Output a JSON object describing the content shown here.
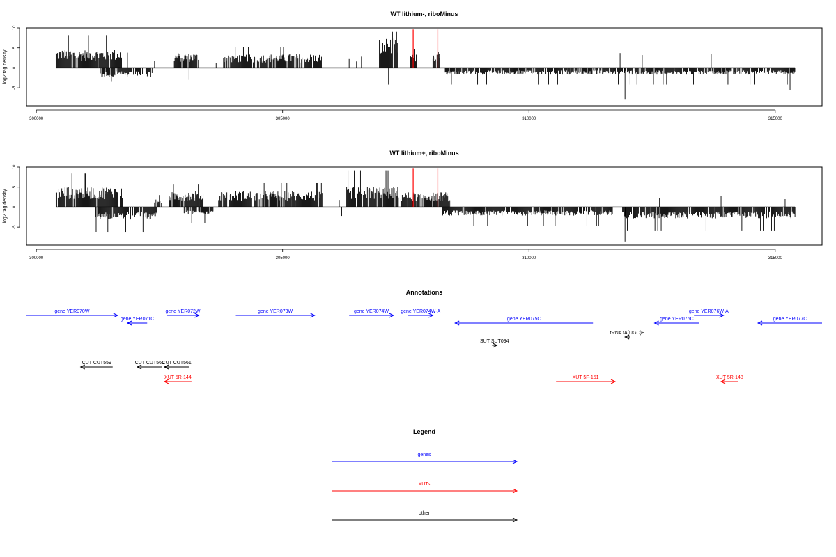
{
  "colors": {
    "gene": "#0000ff",
    "xut": "#ff0000",
    "other": "#000000",
    "marker": "#ff0000",
    "axis": "#000000"
  },
  "chart_data": [
    {
      "type": "bar",
      "title": "WT lithium-, riboMinus",
      "ylabel": "log2 tag density",
      "xlim": [
        299800,
        315950
      ],
      "ylim": [
        -9.5,
        10
      ],
      "x_ticks": [
        300000,
        305000,
        310000,
        315000
      ],
      "x_tick_labels": [
        "300000",
        "305000",
        "310000",
        "315000"
      ],
      "y_ticks": [
        -5,
        0,
        5,
        10
      ],
      "y_tick_labels": [
        "-5",
        "0",
        "5",
        "10"
      ],
      "grid": false,
      "markers": [
        307650,
        308150
      ],
      "forward_regions": [
        {
          "start": 300400,
          "end": 301750,
          "mean": 3.2,
          "peak": 8.2
        },
        {
          "start": 302800,
          "end": 303300,
          "mean": 2.6,
          "peak": 5.8
        },
        {
          "start": 303800,
          "end": 305800,
          "mean": 2.4,
          "peak": 5.2
        },
        {
          "start": 306950,
          "end": 307350,
          "mean": 5.2,
          "peak": 9.0
        },
        {
          "start": 307600,
          "end": 307750,
          "mean": 2.4,
          "peak": 4.6
        },
        {
          "start": 308050,
          "end": 308200,
          "mean": 2.8,
          "peak": 5.0
        }
      ],
      "forward_spikes": [
        {
          "x": 301850,
          "y": 3.8
        },
        {
          "x": 302400,
          "y": 1.8
        },
        {
          "x": 303650,
          "y": 1.2
        },
        {
          "x": 306350,
          "y": 2.2
        },
        {
          "x": 306500,
          "y": 1.6
        },
        {
          "x": 306600,
          "y": 2.8
        },
        {
          "x": 306750,
          "y": 1.2
        },
        {
          "x": 311850,
          "y": 3.7
        },
        {
          "x": 312300,
          "y": 3.2
        },
        {
          "x": 313700,
          "y": 3.4
        }
      ],
      "reverse_regions": [
        {
          "start": 301300,
          "end": 302350,
          "mean": -1.6,
          "peak": -3.5
        },
        {
          "start": 308300,
          "end": 315400,
          "mean": -1.2,
          "peak": -4.2
        }
      ],
      "reverse_spikes": [
        {
          "x": 303100,
          "y": -3.0
        },
        {
          "x": 307150,
          "y": -4.2
        },
        {
          "x": 311950,
          "y": -7.8
        },
        {
          "x": 315300,
          "y": -5.5
        }
      ]
    },
    {
      "type": "bar",
      "title": "WT lithium+, riboMinus",
      "ylabel": "log2 tag density",
      "xlim": [
        299800,
        315950
      ],
      "ylim": [
        -9.5,
        10
      ],
      "x_ticks": [
        300000,
        305000,
        310000,
        315000
      ],
      "x_tick_labels": [
        "300000",
        "305000",
        "310000",
        "315000"
      ],
      "y_ticks": [
        -5,
        0,
        5,
        10
      ],
      "y_tick_labels": [
        "-5",
        "0",
        "5",
        "10"
      ],
      "grid": false,
      "markers": [
        307650,
        308150
      ],
      "forward_regions": [
        {
          "start": 300400,
          "end": 301750,
          "mean": 3.6,
          "peak": 8.4
        },
        {
          "start": 302400,
          "end": 302550,
          "mean": 1.5,
          "peak": 3.0
        },
        {
          "start": 302700,
          "end": 303400,
          "mean": 2.8,
          "peak": 5.8
        },
        {
          "start": 303700,
          "end": 305800,
          "mean": 2.8,
          "peak": 6.0
        },
        {
          "start": 306300,
          "end": 307350,
          "mean": 3.6,
          "peak": 9.2
        },
        {
          "start": 307400,
          "end": 308400,
          "mean": 2.6,
          "peak": 7.0
        }
      ],
      "forward_spikes": [
        {
          "x": 306150,
          "y": 1.8
        },
        {
          "x": 312650,
          "y": 2.2
        },
        {
          "x": 313900,
          "y": 2.8
        },
        {
          "x": 315200,
          "y": 2.0
        }
      ],
      "reverse_regions": [
        {
          "start": 301200,
          "end": 302450,
          "mean": -2.2,
          "peak": -6.2
        },
        {
          "start": 303000,
          "end": 303600,
          "mean": -1.3,
          "peak": -4.0
        },
        {
          "start": 308250,
          "end": 311700,
          "mean": -1.5,
          "peak": -4.8
        },
        {
          "start": 311900,
          "end": 315400,
          "mean": -2.0,
          "peak": -6.0
        }
      ],
      "reverse_spikes": [
        {
          "x": 311950,
          "y": -8.6
        },
        {
          "x": 304700,
          "y": -1.8
        },
        {
          "x": 306200,
          "y": -2.2
        }
      ]
    },
    {
      "type": "annotation_track",
      "title": "Annotations",
      "xlim": [
        299800,
        315950
      ],
      "features": [
        {
          "label": "gene YER070W",
          "kind": "gene",
          "strand": "+",
          "start": 299800,
          "end": 301650,
          "row": 0
        },
        {
          "label": "gene YER071C",
          "kind": "gene",
          "strand": "-",
          "start": 301850,
          "end": 302250,
          "row": 1
        },
        {
          "label": "gene YER072W",
          "kind": "gene",
          "strand": "+",
          "start": 302650,
          "end": 303300,
          "row": 0
        },
        {
          "label": "gene YER073W",
          "kind": "gene",
          "strand": "+",
          "start": 304050,
          "end": 305650,
          "row": 0
        },
        {
          "label": "gene YER074W",
          "kind": "gene",
          "strand": "+",
          "start": 306350,
          "end": 307250,
          "row": 0
        },
        {
          "label": "gene YER074W-A",
          "kind": "gene",
          "strand": "+",
          "start": 307550,
          "end": 308050,
          "row": 0
        },
        {
          "label": "gene YER075C",
          "kind": "gene",
          "strand": "-",
          "start": 308500,
          "end": 311300,
          "row": 1
        },
        {
          "label": "gene YER076C",
          "kind": "gene",
          "strand": "-",
          "start": 312550,
          "end": 313450,
          "row": 1
        },
        {
          "label": "gene YER076W-A",
          "kind": "gene",
          "strand": "+",
          "start": 313350,
          "end": 313950,
          "row": 0
        },
        {
          "label": "gene YER077C",
          "kind": "gene",
          "strand": "-",
          "start": 314650,
          "end": 315950,
          "row": 1
        },
        {
          "label": "tRNA tA(UGC)E",
          "kind": "other",
          "strand": "-",
          "start": 311950,
          "end": 312050,
          "row": 2
        },
        {
          "label": "SUT SUT094",
          "kind": "other",
          "strand": "+",
          "start": 309250,
          "end": 309350,
          "row": 3
        },
        {
          "label": "CUT CUT559",
          "kind": "other",
          "strand": "-",
          "start": 300900,
          "end": 301550,
          "row": 4
        },
        {
          "label": "CUT CUT560",
          "kind": "other",
          "strand": "-",
          "start": 302050,
          "end": 302550,
          "row": 4
        },
        {
          "label": "CUT CUT561",
          "kind": "other",
          "strand": "-",
          "start": 302600,
          "end": 303100,
          "row": 4
        },
        {
          "label": "XUT 5R-144",
          "kind": "xut",
          "strand": "-",
          "start": 302600,
          "end": 303150,
          "row": 5
        },
        {
          "label": "XUT 5F-151",
          "kind": "xut",
          "strand": "+",
          "start": 310550,
          "end": 311750,
          "row": 5
        },
        {
          "label": "XUT 5R-148",
          "kind": "xut",
          "strand": "-",
          "start": 313900,
          "end": 314250,
          "row": 5
        }
      ]
    },
    {
      "type": "legend",
      "title": "Legend",
      "items": [
        {
          "label": "genes",
          "kind": "gene"
        },
        {
          "label": "XUTs",
          "kind": "xut"
        },
        {
          "label": "other",
          "kind": "other"
        }
      ]
    }
  ]
}
